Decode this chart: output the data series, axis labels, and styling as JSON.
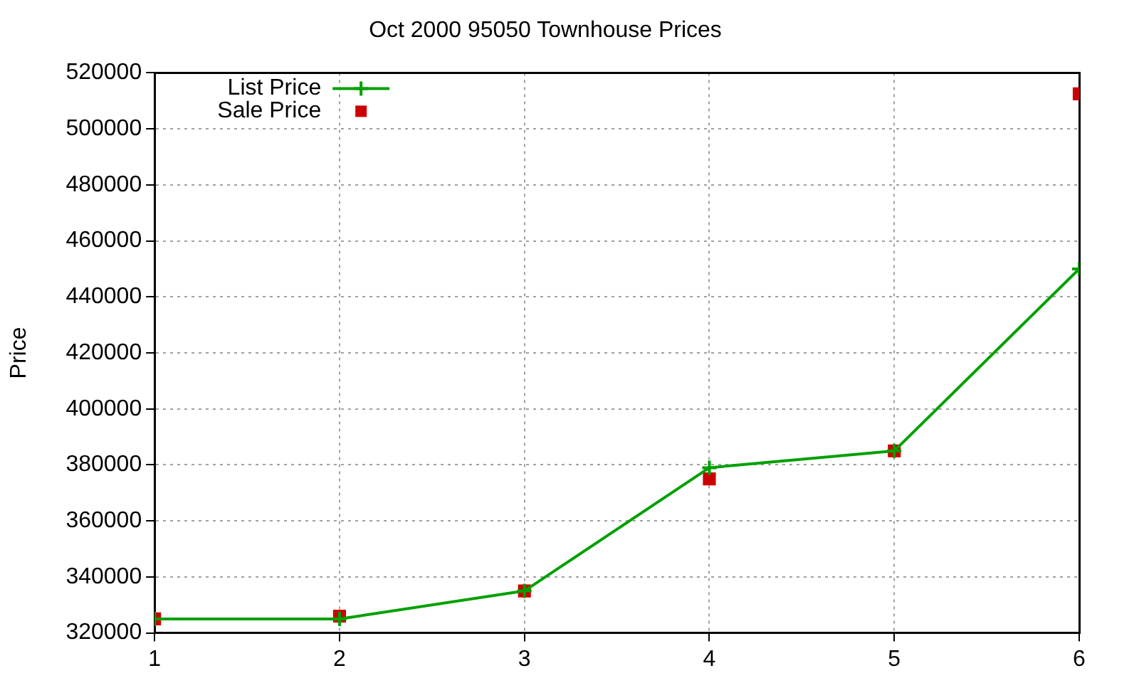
{
  "chart_data": {
    "type": "line",
    "title": "Oct 2000 95050 Townhouse Prices",
    "ylabel": "Price",
    "x": [
      1,
      2,
      3,
      4,
      5,
      6
    ],
    "series": [
      {
        "name": "List Price",
        "color": "#00a000",
        "marker": "cross",
        "values": [
          325000,
          325000,
          335000,
          379000,
          385000,
          450000
        ]
      },
      {
        "name": "Sale Price",
        "type": "scatter",
        "color": "#cc0000",
        "marker": "square",
        "values": [
          325000,
          326000,
          335000,
          375000,
          385000,
          512500
        ]
      }
    ],
    "xlim": [
      1,
      6
    ],
    "xticks": [
      1,
      2,
      3,
      4,
      5,
      6
    ],
    "ylim": [
      320000,
      520000
    ],
    "yticks": [
      320000,
      340000,
      360000,
      380000,
      400000,
      420000,
      440000,
      460000,
      480000,
      500000,
      520000
    ],
    "grid": true,
    "legend": "top left"
  }
}
